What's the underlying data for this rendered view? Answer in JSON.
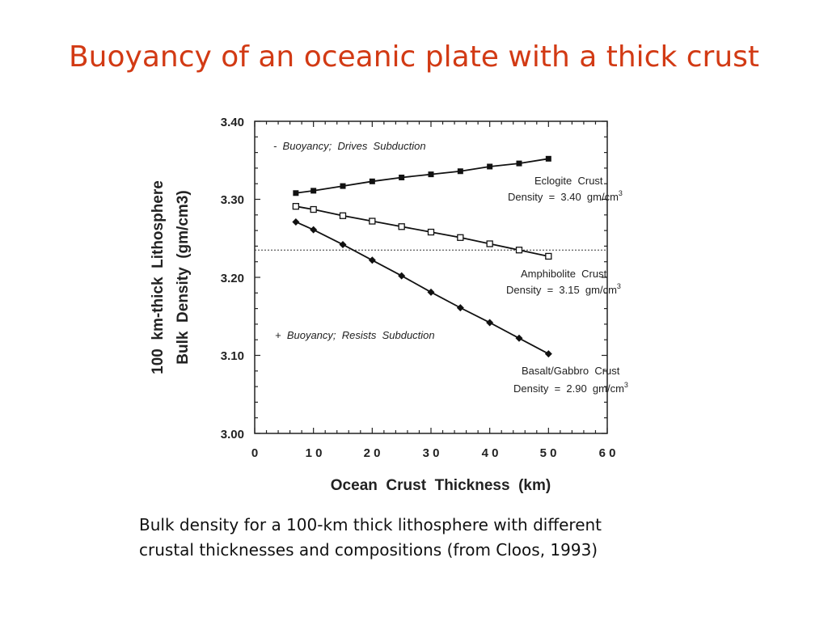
{
  "slide": {
    "title": "Buoyancy of an oceanic plate with a thick crust",
    "caption_line1": "Bulk density for a 100-km thick lithosphere with different",
    "caption_line2": "crustal thicknesses and compositions (from Cloos, 1993)"
  },
  "chart_data": {
    "type": "line",
    "xlabel": "Ocean  Crust  Thickness  (km)",
    "ylabel_line1": "100  km-thick  Lithosphere",
    "ylabel_line2": "Bulk  Density  (gm/cm3)",
    "xlim": [
      0,
      60
    ],
    "ylim": [
      3.0,
      3.4
    ],
    "x_ticks": [
      "0",
      "1 0",
      "2 0",
      "3 0",
      "4 0",
      "5 0",
      "6 0"
    ],
    "y_ticks": [
      "3.00",
      "3.10",
      "3.20",
      "3.30",
      "3.40"
    ],
    "reference_line_y": 3.235,
    "x": [
      7,
      10,
      15,
      20,
      25,
      30,
      35,
      40,
      45,
      50
    ],
    "series": [
      {
        "values": [
          3.308,
          3.311,
          3.317,
          3.323,
          3.328,
          3.332,
          3.336,
          3.342,
          3.346,
          3.352
        ],
        "marker": "filled-square"
      },
      {
        "values": [
          3.291,
          3.287,
          3.279,
          3.272,
          3.265,
          3.258,
          3.251,
          3.243,
          3.235,
          3.227
        ],
        "marker": "open-square"
      },
      {
        "values": [
          3.271,
          3.261,
          3.242,
          3.222,
          3.202,
          3.181,
          3.161,
          3.142,
          3.122,
          3.102
        ],
        "marker": "filled-diamond"
      }
    ],
    "series_labels": [
      {
        "name": "Eclogite  Crust",
        "density": "Density  =  3.40  gm/cm",
        "sup": "3"
      },
      {
        "name": "Amphibolite  Crust",
        "density": "Density  =  3.15  gm/cm",
        "sup": "3"
      },
      {
        "name": "Basalt/Gabbro  Crust",
        "density": "Density  =  2.90  gm/cm",
        "sup": "3"
      }
    ],
    "annotations": {
      "top": "-  Buoyancy;  Drives  Subduction",
      "bottom": "+  Buoyancy;  Resists  Subduction"
    },
    "grid": false,
    "color": "#111111"
  }
}
